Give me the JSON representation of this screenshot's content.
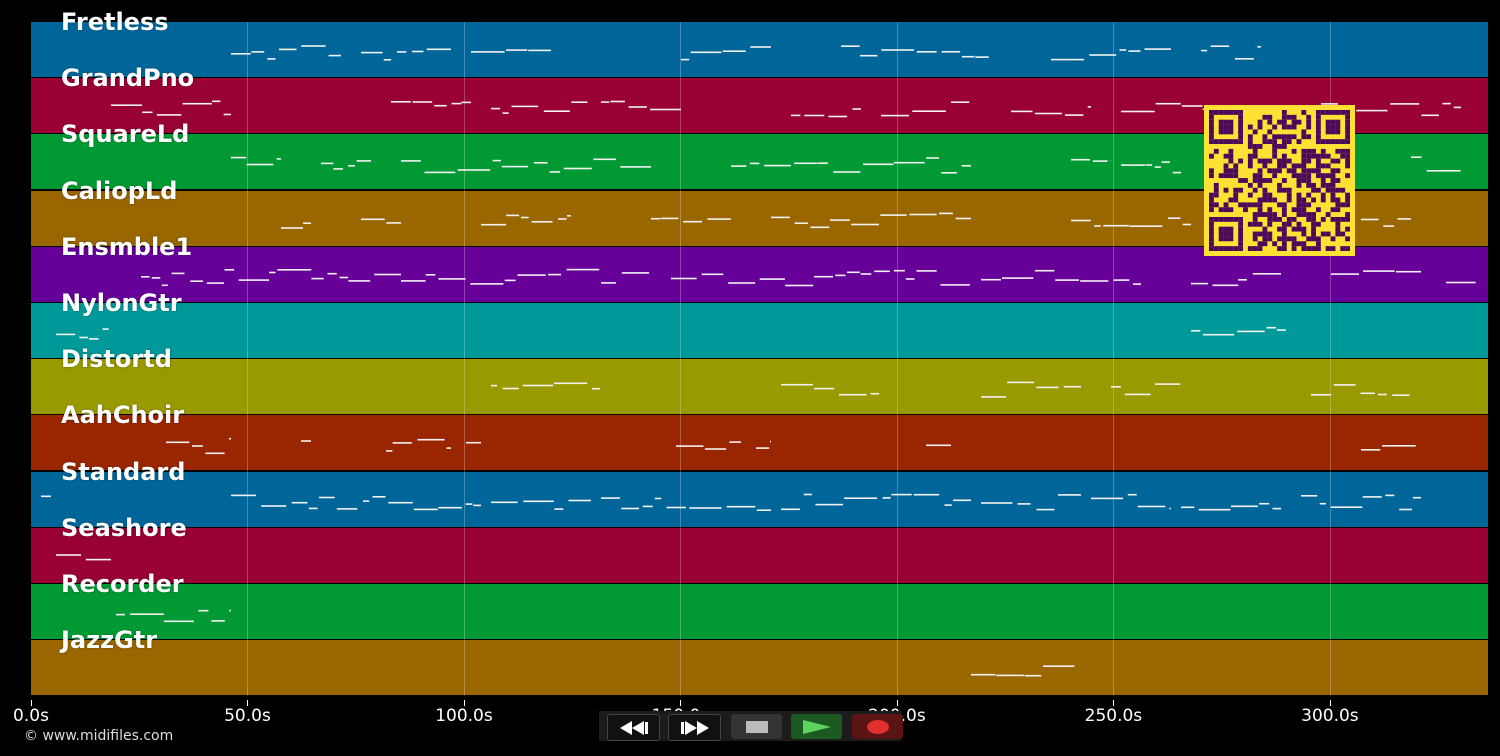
{
  "tracks": [
    {
      "name": "Fretless",
      "color": "#006699"
    },
    {
      "name": "GrandPno",
      "color": "#990033"
    },
    {
      "name": "SquareLd",
      "color": "#009933"
    },
    {
      "name": "CaliopLd",
      "color": "#996600"
    },
    {
      "name": "Ensmble1",
      "color": "#660099"
    },
    {
      "name": "NylonGtr",
      "color": "#009999"
    },
    {
      "name": "Distortd",
      "color": "#999900"
    },
    {
      "name": "AahChoir",
      "color": "#992600"
    },
    {
      "name": "Standard",
      "color": "#006699"
    },
    {
      "name": "Seashore",
      "color": "#990033"
    },
    {
      "name": "Recorder",
      "color": "#009933"
    },
    {
      "name": "JazzGtr",
      "color": "#996600"
    }
  ],
  "axis": {
    "ticks": [
      "0.0s",
      "50.0s",
      "100.0s",
      "150.0s",
      "200.0s",
      "250.0s",
      "300.0s"
    ],
    "tick_values": [
      0,
      50,
      100,
      150,
      200,
      250,
      300
    ],
    "max_seconds": 335
  },
  "transport": {
    "buttons": [
      {
        "id": "rewind",
        "icon": "rewind-icon"
      },
      {
        "id": "fast-forward",
        "icon": "fast-forward-icon"
      },
      {
        "id": "stop",
        "icon": "stop-icon"
      },
      {
        "id": "play",
        "icon": "play-icon"
      },
      {
        "id": "record",
        "icon": "record-icon"
      }
    ]
  },
  "copyright": "© www.midifiles.com",
  "overlay": {
    "icon": "qr-code-icon",
    "color": "#ffe135",
    "dark": "#4a0a5a"
  }
}
